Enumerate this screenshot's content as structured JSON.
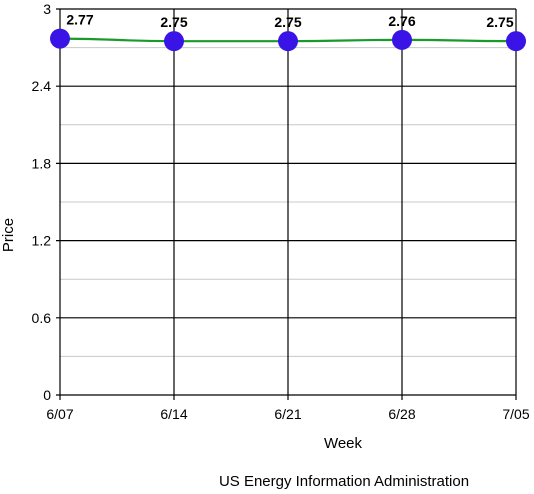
{
  "chart_data": {
    "type": "line",
    "categories": [
      "6/07",
      "6/14",
      "6/21",
      "6/28",
      "7/05"
    ],
    "series": [
      {
        "values": [
          2.77,
          2.75,
          2.75,
          2.76,
          2.75
        ]
      }
    ],
    "data_labels": [
      "2.77",
      "2.75",
      "2.75",
      "2.76",
      "2.75"
    ],
    "xlabel": "Week",
    "ylabel": "Price",
    "ylim": [
      0,
      3
    ],
    "yticks": [
      "0",
      "0.6",
      "1.2",
      "1.8",
      "2.4",
      "3"
    ],
    "ytick_values": [
      0,
      0.6,
      1.2,
      1.8,
      2.4,
      3
    ],
    "minor_ytick_values": [
      0.3,
      0.9,
      1.5,
      2.1,
      2.7
    ],
    "grid": true,
    "source": "US Energy Information Administration",
    "colors": {
      "line": "#1a9a2a",
      "marker": "#3a14e6",
      "major_grid": "#000000",
      "minor_grid": "#c8c8c8"
    }
  }
}
